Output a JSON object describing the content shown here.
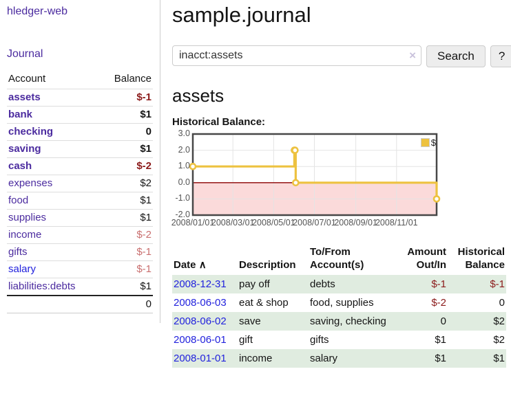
{
  "app": {
    "title": "hledger-web",
    "nav_journal": "Journal"
  },
  "colors": {
    "link_purple": "#4b2b9f",
    "link_blue": "#2222dd",
    "negative": "#8b1a1a",
    "negative_soft": "#c96f6f",
    "row_stripe_green": "#e0ece0",
    "chart_line_gold": "#edc240",
    "chart_negative_region": "#fbdada",
    "chart_zero_line": "#8b0000"
  },
  "sidebar": {
    "col_account": "Account",
    "col_balance": "Balance",
    "accounts": [
      {
        "name": "assets",
        "balance": "$-1",
        "indent": 0,
        "bold": true,
        "balance_style": "neg"
      },
      {
        "name": "bank",
        "balance": "$1",
        "indent": 1,
        "bold": true,
        "balance_style": "pos"
      },
      {
        "name": "checking",
        "balance": "0",
        "indent": 2,
        "bold": true,
        "balance_style": "pos"
      },
      {
        "name": "saving",
        "balance": "$1",
        "indent": 2,
        "bold": true,
        "balance_style": "pos"
      },
      {
        "name": "cash",
        "balance": "$-2",
        "indent": 1,
        "bold": true,
        "balance_style": "neg"
      },
      {
        "name": "expenses",
        "balance": "$2",
        "indent": 0,
        "bold": false,
        "balance_style": "pos"
      },
      {
        "name": "food",
        "balance": "$1",
        "indent": 1,
        "bold": false,
        "balance_style": "pos"
      },
      {
        "name": "supplies",
        "balance": "$1",
        "indent": 1,
        "bold": false,
        "balance_style": "pos"
      },
      {
        "name": "income",
        "balance": "$-2",
        "indent": 0,
        "bold": false,
        "balance_style": "neg-soft"
      },
      {
        "name": "gifts",
        "balance": "$-1",
        "indent": 1,
        "bold": false,
        "balance_style": "neg-soft"
      },
      {
        "name": "salary",
        "balance": "$-1",
        "indent": 1,
        "bold": false,
        "balance_style": "neg-soft",
        "link_color": "blue"
      },
      {
        "name": "liabilities:debts",
        "balance": "$1",
        "indent": 0,
        "bold": false,
        "balance_style": "pos"
      }
    ],
    "total": "0"
  },
  "header": {
    "journal_title": "sample.journal"
  },
  "search": {
    "query": "inacct:assets",
    "clear_icon": "×",
    "button_label": "Search",
    "help_label": "?"
  },
  "account_page": {
    "title": "assets",
    "chart_label": "Historical Balance:"
  },
  "chart_data": {
    "type": "line",
    "step": true,
    "title": "Historical Balance",
    "series": [
      {
        "name": "$",
        "color": "#edc240",
        "points": [
          [
            "2008-01-01",
            1
          ],
          [
            "2008-06-01",
            2
          ],
          [
            "2008-06-02",
            2
          ],
          [
            "2008-06-03",
            0
          ],
          [
            "2008-12-31",
            -1
          ]
        ]
      }
    ],
    "x_ticks": [
      "2008/01/01",
      "2008/03/01",
      "2008/05/01",
      "2008/07/01",
      "2008/09/01",
      "2008/11/01"
    ],
    "y_ticks": [
      "3.0",
      "2.0",
      "1.0",
      "0.0",
      "-1.0",
      "-2.0"
    ],
    "ylim": [
      -2,
      3
    ],
    "xlim": [
      "2008-01-01",
      "2008-12-31"
    ],
    "legend": "$",
    "legend_position": "top-right",
    "grid": true
  },
  "register": {
    "columns": [
      "Date",
      "Description",
      "To/From Account(s)",
      "Amount Out/In",
      "Historical Balance"
    ],
    "sort_icon": "∧",
    "rows": [
      {
        "date": "2008-12-31",
        "description": "pay off",
        "accounts": "debts",
        "amount": "$-1",
        "balance": "$-1",
        "amount_negative": true,
        "balance_negative": true
      },
      {
        "date": "2008-06-03",
        "description": "eat & shop",
        "accounts": "food, supplies",
        "amount": "$-2",
        "balance": "0",
        "amount_negative": true,
        "balance_negative": false
      },
      {
        "date": "2008-06-02",
        "description": "save",
        "accounts": "saving, checking",
        "amount": "0",
        "balance": "$2",
        "amount_negative": false,
        "balance_negative": false
      },
      {
        "date": "2008-06-01",
        "description": "gift",
        "accounts": "gifts",
        "amount": "$1",
        "balance": "$2",
        "amount_negative": false,
        "balance_negative": false
      },
      {
        "date": "2008-01-01",
        "description": "income",
        "accounts": "salary",
        "amount": "$1",
        "balance": "$1",
        "amount_negative": false,
        "balance_negative": false
      }
    ]
  }
}
